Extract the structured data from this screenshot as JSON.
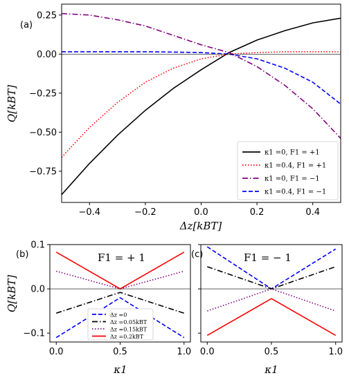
{
  "chart_data": [
    {
      "panel": "(a)",
      "type": "line",
      "xlabel": "Δz[kBT]",
      "ylabel": "Q[kBT]",
      "xlim": [
        -0.5,
        0.5
      ],
      "ylim": [
        -0.95,
        0.32
      ],
      "xticks": [
        "−0.4",
        "−0.2",
        "0.0",
        "0.2",
        "0.4"
      ],
      "yticks": [
        "−0.75",
        "−0.50",
        "−0.25",
        "0.00",
        "0.25"
      ],
      "legend_position": "lower right",
      "x": [
        -0.5,
        -0.4,
        -0.3,
        -0.2,
        -0.1,
        0.0,
        0.1,
        0.2,
        0.3,
        0.4,
        0.5
      ],
      "series": [
        {
          "name": "κ1 =0, F1 = +1",
          "color": "#000000",
          "dash": "solid",
          "values": [
            -0.9,
            -0.7,
            -0.52,
            -0.36,
            -0.22,
            -0.1,
            0.01,
            0.09,
            0.15,
            0.2,
            0.23
          ]
        },
        {
          "name": "κ1 =0.4, F1 = +1",
          "color": "#ff0000",
          "dash": "dotted",
          "values": [
            -0.66,
            -0.47,
            -0.31,
            -0.18,
            -0.09,
            -0.03,
            0.0,
            0.01,
            0.015,
            0.015,
            0.015
          ]
        },
        {
          "name": "κ1 =0, F1 = −1",
          "color": "#800080",
          "dash": "dashdot",
          "values": [
            0.26,
            0.25,
            0.22,
            0.18,
            0.12,
            0.06,
            0.01,
            -0.08,
            -0.2,
            -0.35,
            -0.54
          ]
        },
        {
          "name": "κ1 =0.4, F1 = −1",
          "color": "#0000ff",
          "dash": "dashed",
          "values": [
            0.015,
            0.015,
            0.015,
            0.015,
            0.013,
            0.01,
            0.0,
            -0.03,
            -0.09,
            -0.18,
            -0.32
          ]
        }
      ]
    },
    {
      "panel": "(b)",
      "type": "line",
      "annotation": "F1 = + 1",
      "xlabel": "κ1",
      "ylabel": "Q[kBT]",
      "xlim": [
        -0.05,
        1.05
      ],
      "ylim": [
        -0.12,
        0.1
      ],
      "xticks": [
        "0.0",
        "0.5",
        "1.0"
      ],
      "yticks": [
        "−0.1",
        "0.0",
        "0.1"
      ],
      "legend_position": "lower center",
      "x": [
        0.0,
        0.5,
        1.0
      ],
      "series": [
        {
          "name": "Δz =0",
          "color": "#0000ff",
          "dash": "dashed",
          "values": [
            -0.11,
            -0.02,
            -0.11
          ]
        },
        {
          "name": "Δz =0.05kBT",
          "color": "#000000",
          "dash": "dashdot",
          "values": [
            -0.055,
            -0.008,
            -0.055
          ]
        },
        {
          "name": "Δz =0.15kBT",
          "color": "#800080",
          "dash": "dotted",
          "values": [
            0.04,
            0.0,
            0.04
          ]
        },
        {
          "name": "Δz =0.2kBT",
          "color": "#ff0000",
          "dash": "solid",
          "values": [
            0.083,
            0.0,
            0.083
          ]
        }
      ]
    },
    {
      "panel": "(c)",
      "type": "line",
      "annotation": "F1 = − 1",
      "xlabel": "κ1",
      "ylabel": "",
      "xlim": [
        -0.05,
        1.05
      ],
      "ylim": [
        -0.12,
        0.1
      ],
      "xticks": [
        "0.0",
        "0.5",
        "1.0"
      ],
      "yticks": [],
      "x": [
        0.0,
        0.5,
        1.0
      ],
      "series": [
        {
          "name": "Δz =0",
          "color": "#0000ff",
          "dash": "dashed",
          "values": [
            0.095,
            0.0,
            0.09
          ]
        },
        {
          "name": "Δz =0.05kBT",
          "color": "#000000",
          "dash": "dashdot",
          "values": [
            0.05,
            0.0,
            0.05
          ]
        },
        {
          "name": "Δz =0.15kBT",
          "color": "#800080",
          "dash": "dotted",
          "values": [
            -0.05,
            0.0,
            -0.05
          ]
        },
        {
          "name": "Δz =0.2kBT",
          "color": "#ff0000",
          "dash": "solid",
          "values": [
            -0.105,
            -0.022,
            -0.105
          ]
        }
      ]
    }
  ]
}
